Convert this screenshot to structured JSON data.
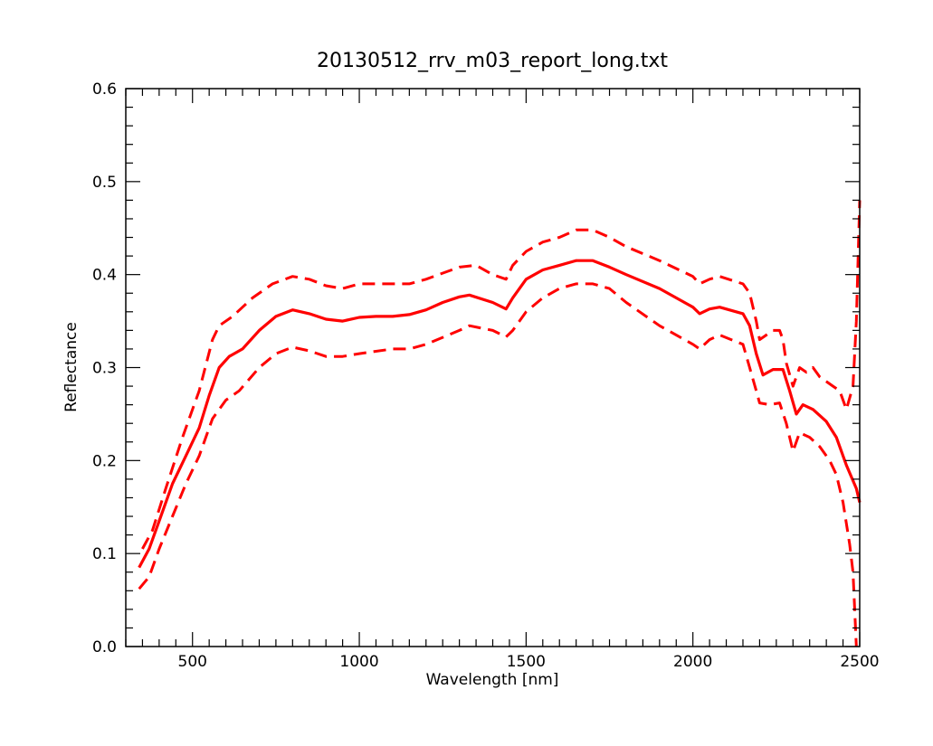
{
  "chart_data": {
    "type": "line",
    "title": "20130512_rrv_m03_report_long.txt",
    "xlabel": "Wavelength [nm]",
    "ylabel": "Reflectance",
    "xlim": [
      300,
      2500
    ],
    "ylim": [
      0.0,
      0.6
    ],
    "grid": false,
    "x_ticks": [
      {
        "value": 500,
        "label": "500"
      },
      {
        "value": 1000,
        "label": "1000"
      },
      {
        "value": 1500,
        "label": "1500"
      },
      {
        "value": 2000,
        "label": "2000"
      },
      {
        "value": 2500,
        "label": "2500"
      }
    ],
    "y_ticks": [
      {
        "value": 0.0,
        "label": "0.0"
      },
      {
        "value": 0.1,
        "label": "0.1"
      },
      {
        "value": 0.2,
        "label": "0.2"
      },
      {
        "value": 0.3,
        "label": "0.3"
      },
      {
        "value": 0.4,
        "label": "0.4"
      },
      {
        "value": 0.5,
        "label": "0.5"
      },
      {
        "value": 0.6,
        "label": "0.6"
      }
    ],
    "series": [
      {
        "style": "dashed",
        "color": "#ff0000",
        "points": [
          [
            350,
            0.105
          ],
          [
            380,
            0.125
          ],
          [
            420,
            0.17
          ],
          [
            470,
            0.225
          ],
          [
            520,
            0.275
          ],
          [
            560,
            0.33
          ],
          [
            580,
            0.345
          ],
          [
            620,
            0.355
          ],
          [
            680,
            0.375
          ],
          [
            740,
            0.39
          ],
          [
            800,
            0.398
          ],
          [
            850,
            0.395
          ],
          [
            900,
            0.388
          ],
          [
            950,
            0.385
          ],
          [
            1000,
            0.39
          ],
          [
            1100,
            0.39
          ],
          [
            1150,
            0.39
          ],
          [
            1200,
            0.395
          ],
          [
            1300,
            0.408
          ],
          [
            1350,
            0.41
          ],
          [
            1400,
            0.4
          ],
          [
            1440,
            0.395
          ],
          [
            1460,
            0.41
          ],
          [
            1500,
            0.425
          ],
          [
            1550,
            0.435
          ],
          [
            1600,
            0.44
          ],
          [
            1650,
            0.448
          ],
          [
            1700,
            0.448
          ],
          [
            1750,
            0.44
          ],
          [
            1800,
            0.43
          ],
          [
            1900,
            0.415
          ],
          [
            2000,
            0.398
          ],
          [
            2020,
            0.39
          ],
          [
            2050,
            0.395
          ],
          [
            2080,
            0.398
          ],
          [
            2150,
            0.39
          ],
          [
            2170,
            0.38
          ],
          [
            2190,
            0.35
          ],
          [
            2200,
            0.33
          ],
          [
            2220,
            0.335
          ],
          [
            2240,
            0.34
          ],
          [
            2260,
            0.34
          ],
          [
            2270,
            0.33
          ],
          [
            2280,
            0.305
          ],
          [
            2300,
            0.28
          ],
          [
            2320,
            0.3
          ],
          [
            2340,
            0.295
          ],
          [
            2360,
            0.3
          ],
          [
            2380,
            0.29
          ],
          [
            2400,
            0.285
          ],
          [
            2420,
            0.28
          ],
          [
            2440,
            0.275
          ],
          [
            2460,
            0.255
          ],
          [
            2480,
            0.28
          ],
          [
            2490,
            0.35
          ],
          [
            2500,
            0.48
          ]
        ]
      },
      {
        "style": "solid",
        "color": "#ff0000",
        "points": [
          [
            340,
            0.085
          ],
          [
            370,
            0.105
          ],
          [
            400,
            0.135
          ],
          [
            440,
            0.175
          ],
          [
            480,
            0.205
          ],
          [
            520,
            0.235
          ],
          [
            550,
            0.27
          ],
          [
            580,
            0.3
          ],
          [
            610,
            0.312
          ],
          [
            650,
            0.32
          ],
          [
            700,
            0.34
          ],
          [
            750,
            0.355
          ],
          [
            800,
            0.362
          ],
          [
            850,
            0.358
          ],
          [
            900,
            0.352
          ],
          [
            950,
            0.35
          ],
          [
            1000,
            0.354
          ],
          [
            1050,
            0.355
          ],
          [
            1100,
            0.355
          ],
          [
            1150,
            0.357
          ],
          [
            1200,
            0.362
          ],
          [
            1250,
            0.37
          ],
          [
            1300,
            0.376
          ],
          [
            1330,
            0.378
          ],
          [
            1400,
            0.37
          ],
          [
            1440,
            0.363
          ],
          [
            1460,
            0.375
          ],
          [
            1500,
            0.395
          ],
          [
            1550,
            0.405
          ],
          [
            1600,
            0.41
          ],
          [
            1650,
            0.415
          ],
          [
            1700,
            0.415
          ],
          [
            1750,
            0.408
          ],
          [
            1800,
            0.4
          ],
          [
            1900,
            0.385
          ],
          [
            2000,
            0.365
          ],
          [
            2020,
            0.358
          ],
          [
            2050,
            0.363
          ],
          [
            2080,
            0.365
          ],
          [
            2150,
            0.358
          ],
          [
            2170,
            0.345
          ],
          [
            2190,
            0.315
          ],
          [
            2210,
            0.292
          ],
          [
            2240,
            0.298
          ],
          [
            2270,
            0.298
          ],
          [
            2290,
            0.275
          ],
          [
            2310,
            0.25
          ],
          [
            2330,
            0.26
          ],
          [
            2360,
            0.255
          ],
          [
            2400,
            0.242
          ],
          [
            2430,
            0.225
          ],
          [
            2460,
            0.195
          ],
          [
            2490,
            0.17
          ],
          [
            2500,
            0.155
          ]
        ]
      },
      {
        "style": "dashed",
        "color": "#ff0000",
        "points": [
          [
            340,
            0.062
          ],
          [
            370,
            0.075
          ],
          [
            400,
            0.105
          ],
          [
            440,
            0.14
          ],
          [
            480,
            0.175
          ],
          [
            520,
            0.205
          ],
          [
            560,
            0.245
          ],
          [
            600,
            0.265
          ],
          [
            640,
            0.275
          ],
          [
            700,
            0.3
          ],
          [
            750,
            0.315
          ],
          [
            800,
            0.322
          ],
          [
            850,
            0.318
          ],
          [
            900,
            0.312
          ],
          [
            950,
            0.312
          ],
          [
            1000,
            0.315
          ],
          [
            1100,
            0.32
          ],
          [
            1150,
            0.32
          ],
          [
            1200,
            0.325
          ],
          [
            1300,
            0.34
          ],
          [
            1330,
            0.345
          ],
          [
            1400,
            0.34
          ],
          [
            1440,
            0.333
          ],
          [
            1460,
            0.34
          ],
          [
            1500,
            0.36
          ],
          [
            1550,
            0.375
          ],
          [
            1600,
            0.385
          ],
          [
            1650,
            0.39
          ],
          [
            1700,
            0.39
          ],
          [
            1750,
            0.385
          ],
          [
            1800,
            0.37
          ],
          [
            1900,
            0.345
          ],
          [
            2000,
            0.325
          ],
          [
            2020,
            0.32
          ],
          [
            2050,
            0.33
          ],
          [
            2080,
            0.335
          ],
          [
            2150,
            0.325
          ],
          [
            2170,
            0.3
          ],
          [
            2190,
            0.275
          ],
          [
            2200,
            0.262
          ],
          [
            2230,
            0.26
          ],
          [
            2260,
            0.262
          ],
          [
            2280,
            0.24
          ],
          [
            2300,
            0.21
          ],
          [
            2320,
            0.23
          ],
          [
            2350,
            0.225
          ],
          [
            2380,
            0.215
          ],
          [
            2410,
            0.2
          ],
          [
            2430,
            0.185
          ],
          [
            2450,
            0.155
          ],
          [
            2470,
            0.11
          ],
          [
            2480,
            0.08
          ],
          [
            2490,
            0.0
          ]
        ]
      }
    ]
  }
}
